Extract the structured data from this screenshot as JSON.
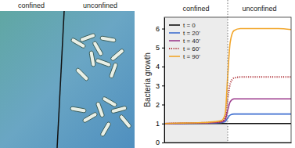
{
  "chart_data": {
    "type": "line",
    "image_labels": [
      "confined",
      "unconfined"
    ],
    "regions": [
      {
        "label": "confined",
        "range": [
          0,
          0.5
        ]
      },
      {
        "label": "unconfined",
        "range": [
          0.5,
          1
        ]
      }
    ],
    "y_label": "Bacteria growth",
    "x": [
      0,
      0.1,
      0.2,
      0.3,
      0.4,
      0.45,
      0.48,
      0.5,
      0.52,
      0.55,
      0.6,
      0.7,
      0.8,
      0.9,
      1
    ],
    "series": [
      {
        "name": "t = 0",
        "color": "#111111",
        "line_style": "solid",
        "values": [
          1,
          1,
          1,
          1,
          1,
          1,
          1,
          1,
          1,
          1,
          1,
          1,
          1,
          1,
          1
        ]
      },
      {
        "name": "t = 20'",
        "color": "#3f6fd0",
        "line_style": "solid",
        "values": [
          1,
          1,
          1.01,
          1.02,
          1.03,
          1.05,
          1.1,
          1.3,
          1.45,
          1.5,
          1.5,
          1.5,
          1.5,
          1.5,
          1.5
        ]
      },
      {
        "name": "t = 40'",
        "color": "#9c3a8c",
        "line_style": "solid",
        "values": [
          1,
          1.01,
          1.02,
          1.03,
          1.05,
          1.08,
          1.2,
          1.7,
          2.15,
          2.3,
          2.3,
          2.3,
          2.3,
          2.3,
          2.3
        ]
      },
      {
        "name": "t = 60'",
        "color": "#b0353c",
        "line_style": "dotted",
        "values": [
          1,
          1.01,
          1.02,
          1.04,
          1.07,
          1.1,
          1.3,
          2.3,
          3.1,
          3.4,
          3.45,
          3.45,
          3.45,
          3.45,
          3.45
        ]
      },
      {
        "name": "t = 90'",
        "color": "#f2a62a",
        "line_style": "solid",
        "values": [
          1,
          1.02,
          1.03,
          1.05,
          1.1,
          1.15,
          1.5,
          3.5,
          5.3,
          5.9,
          6,
          6,
          6,
          6,
          5.95
        ]
      }
    ],
    "xlim": [
      0,
      1
    ],
    "ylim": [
      0,
      6.6
    ],
    "yticks": [
      0,
      1,
      2,
      3,
      4,
      5,
      6
    ],
    "tick_labels": "y",
    "legend": "upper-left",
    "grid": false
  }
}
